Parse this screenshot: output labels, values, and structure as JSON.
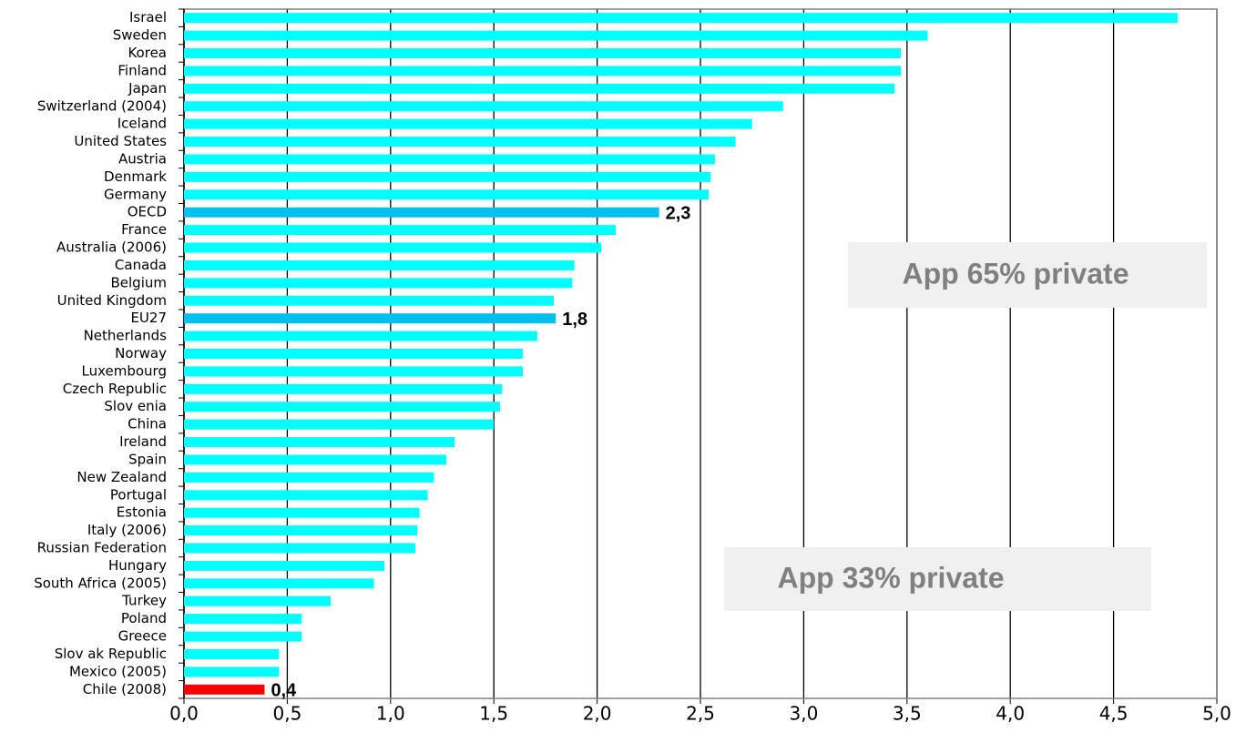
{
  "chart_data": {
    "type": "barh",
    "categories": [
      "Israel",
      "Sweden",
      "Korea",
      "Finland",
      "Japan",
      "Switzerland (2004)",
      "Iceland",
      "United States",
      "Austria",
      "Denmark",
      "Germany",
      "OECD",
      "France",
      "Australia (2006)",
      "Canada",
      "Belgium",
      "United Kingdom",
      "EU27",
      "Netherlands",
      "Norway",
      "Luxembourg",
      "Czech Republic",
      "Slov enia",
      "China",
      "Ireland",
      "Spain",
      "New Zealand",
      "Portugal",
      "Estonia",
      "Italy (2006)",
      "Russian Federation",
      "Hungary",
      "South Africa (2005)",
      "Turkey",
      "Poland",
      "Greece",
      "Slov ak Republic",
      "Mexico (2005)",
      "Chile (2008)"
    ],
    "values": [
      4.81,
      3.6,
      3.47,
      3.47,
      3.44,
      2.9,
      2.75,
      2.67,
      2.57,
      2.55,
      2.54,
      2.3,
      2.09,
      2.02,
      1.89,
      1.88,
      1.79,
      1.8,
      1.71,
      1.64,
      1.64,
      1.54,
      1.53,
      1.5,
      1.31,
      1.27,
      1.21,
      1.18,
      1.14,
      1.13,
      1.12,
      0.97,
      0.92,
      0.71,
      0.57,
      0.57,
      0.46,
      0.46,
      0.39
    ],
    "value_labels": [
      null,
      null,
      null,
      null,
      null,
      null,
      null,
      null,
      null,
      null,
      null,
      "2,3",
      null,
      null,
      null,
      null,
      null,
      "1,8",
      null,
      null,
      null,
      null,
      null,
      null,
      null,
      null,
      null,
      null,
      null,
      null,
      null,
      null,
      null,
      null,
      null,
      null,
      null,
      null,
      "0,4"
    ],
    "colors": [
      "#00ffff",
      "#00ffff",
      "#00ffff",
      "#00ffff",
      "#00ffff",
      "#00ffff",
      "#00ffff",
      "#00ffff",
      "#00ffff",
      "#00ffff",
      "#00ffff",
      "#00c0f0",
      "#00ffff",
      "#00ffff",
      "#00ffff",
      "#00ffff",
      "#00ffff",
      "#00c0f0",
      "#00ffff",
      "#00ffff",
      "#00ffff",
      "#00ffff",
      "#00ffff",
      "#00ffff",
      "#00ffff",
      "#00ffff",
      "#00ffff",
      "#00ffff",
      "#00ffff",
      "#00ffff",
      "#00ffff",
      "#00ffff",
      "#00ffff",
      "#00ffff",
      "#00ffff",
      "#00ffff",
      "#00ffff",
      "#00ffff",
      "#ff0000"
    ],
    "xlim": [
      0,
      5
    ],
    "xticks": [
      {
        "value": 0,
        "label": "0,0"
      },
      {
        "value": 0.5,
        "label": "0,5"
      },
      {
        "value": 1,
        "label": "1,0"
      },
      {
        "value": 1.5,
        "label": "1,5"
      },
      {
        "value": 2,
        "label": "2,0"
      },
      {
        "value": 2.5,
        "label": "2,5"
      },
      {
        "value": 3,
        "label": "3,0"
      },
      {
        "value": 3.5,
        "label": "3,5"
      },
      {
        "value": 4,
        "label": "4,0"
      },
      {
        "value": 4.5,
        "label": "4,5"
      },
      {
        "value": 5,
        "label": "5,0"
      }
    ],
    "grid": true,
    "annotations": [
      "App 65% private",
      "App 33% private"
    ]
  }
}
